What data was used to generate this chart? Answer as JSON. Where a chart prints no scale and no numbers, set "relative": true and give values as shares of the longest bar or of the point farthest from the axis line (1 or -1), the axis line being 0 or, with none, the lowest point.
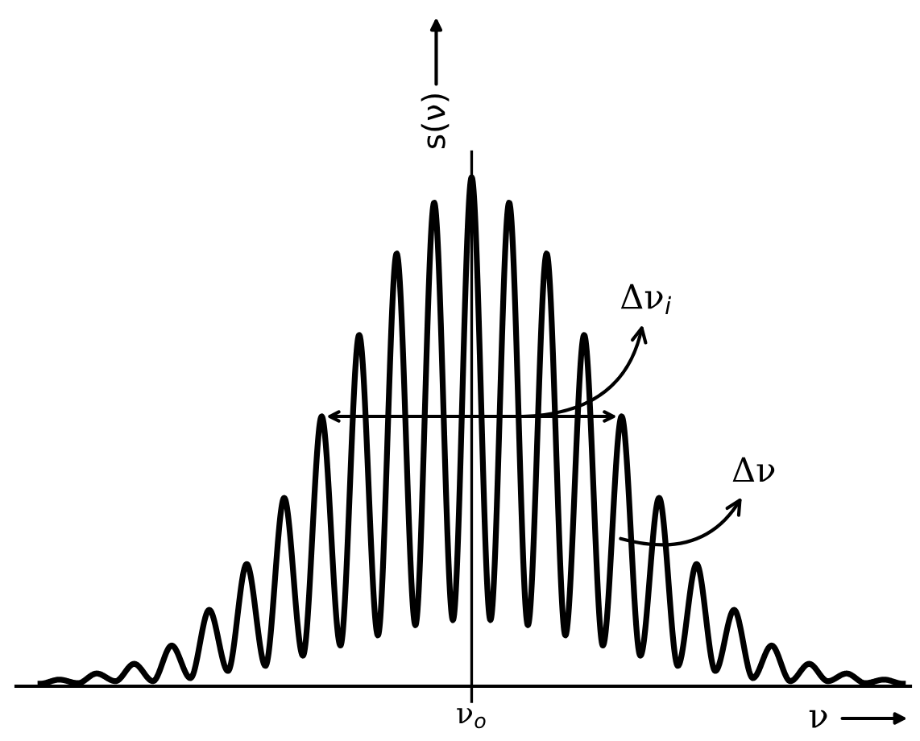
{
  "chart_data": {
    "type": "line",
    "relative": true,
    "ylabel": "s(ν)",
    "xlabel": "ν",
    "categories": [
      null,
      null,
      null,
      null,
      null,
      null,
      null,
      null,
      null,
      null,
      null,
      null,
      null,
      null,
      null,
      null,
      null,
      null,
      null,
      null,
      null,
      null,
      null,
      null,
      null,
      null,
      null,
      null,
      null,
      null,
      null,
      null,
      null,
      null,
      null,
      null,
      null,
      null,
      null,
      null,
      null,
      null,
      null,
      null,
      null,
      null,
      null
    ],
    "series": [
      {
        "color": "#000000",
        "values": [
          0.005,
          0.013,
          0.006,
          0.025,
          0.01,
          0.044,
          0.01,
          0.08,
          0.016,
          0.15,
          0.03,
          0.24,
          0.04,
          0.37,
          0.06,
          0.53,
          0.08,
          0.69,
          0.1,
          0.85,
          0.12,
          0.95,
          0.13,
          1.0,
          0.13,
          0.95,
          0.12,
          0.85,
          0.1,
          0.69,
          0.08,
          0.53,
          0.06,
          0.37,
          0.04,
          0.24,
          0.03,
          0.15,
          0.016,
          0.08,
          0.01,
          0.044,
          0.01,
          0.025,
          0.006,
          0.013,
          0.005
        ]
      }
    ],
    "annotations": [
      "Δν$_{i}$",
      "Δν",
      "ν$_{o}$"
    ],
    "legend": false,
    "marker": "none",
    "line_style": "solid"
  }
}
